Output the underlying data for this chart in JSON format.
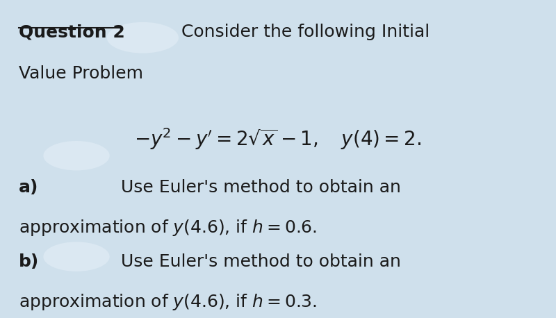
{
  "background_color": "#cfe0ec",
  "equation": "$-y^2 - y' = 2\\sqrt{x} - 1, \\quad y(4) = 2.$",
  "font_size_main": 18,
  "font_size_eq": 20,
  "text_color": "#1a1a1a",
  "blob_color": "#dbe8f2",
  "title_q": "Question 2",
  "title_rest": "Consider the following Initial",
  "title_line2": "Value Problem",
  "part_a_label": "a)",
  "part_a_line1": "Use Euler's method to obtain an",
  "part_a_line2": "approximation of $y(4.6)$, if $h = 0.6$.",
  "part_b_label": "b)",
  "part_b_line1": "Use Euler's method to obtain an",
  "part_b_line2": "approximation of $y(4.6)$, if $h = 0.3$."
}
